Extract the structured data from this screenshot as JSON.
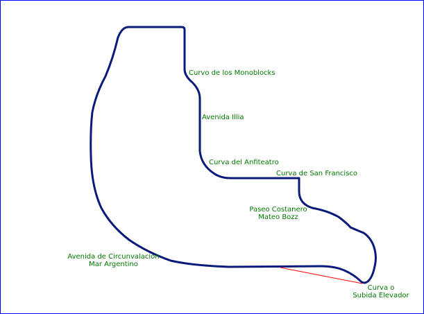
{
  "colors": {
    "border": "#0000ff",
    "track": "#0a1a7a",
    "label": "#007700",
    "leader_line": "#ff0000",
    "background": "#ffffff"
  },
  "labels": {
    "curvo_monoblocks": "Curvo de los Monoblocks",
    "avenida_illia": "Avenida Illia",
    "curva_anfiteatro": "Curva del Anfiteatro",
    "curva_san_francisco": "Curva de San Francisco",
    "paseo_costanero_1": "Paseo Costanero",
    "paseo_costanero_2": "Mateo Bozz",
    "avenida_circunvalacion_1": "Avenida de Circunvalacion",
    "avenida_circunvalacion_2": "Mar Argentino",
    "curva_subida_1": "Curva o",
    "curva_subida_2": "Subida Elevador"
  }
}
